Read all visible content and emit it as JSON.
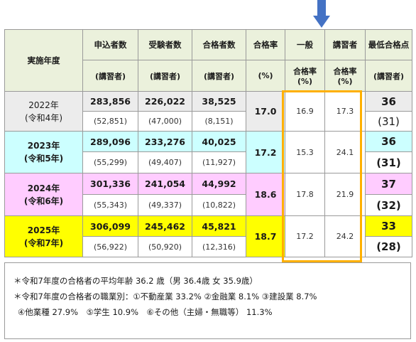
{
  "headers": {
    "year": "実施年度",
    "applicants": "申込者数",
    "examinees": "受験者数",
    "passers": "合格者数",
    "rate": "合格率",
    "general": "一般",
    "course": "講習者",
    "min_score": "最低合格点",
    "course_paren": "(講習者)",
    "pct_unit": "(%)",
    "rate_pct_general": "合格率",
    "rate_pct_general_unit": "(%)",
    "rate_pct_course": "合格率",
    "rate_pct_course_unit": "(%)"
  },
  "rows": [
    {
      "year": "2022年",
      "era": "(令和4年)",
      "applicants": "283,856",
      "applicants_course": "(52,851)",
      "examinees": "226,022",
      "examinees_course": "(47,000)",
      "passers": "38,525",
      "passers_course": "(8,151)",
      "rate": "17.0",
      "general": "16.9",
      "course": "17.3",
      "min": "36",
      "min_course": "(31)"
    },
    {
      "year": "2023年",
      "era": "(令和5年)",
      "applicants": "289,096",
      "applicants_course": "(55,299)",
      "examinees": "233,276",
      "examinees_course": "(49,407)",
      "passers": "40,025",
      "passers_course": "(11,927)",
      "rate": "17.2",
      "general": "15.3",
      "course": "24.1",
      "min": "36",
      "min_course": "(31)"
    },
    {
      "year": "2024年",
      "era": "(令和6年)",
      "applicants": "301,336",
      "applicants_course": "(55,343)",
      "examinees": "241,054",
      "examinees_course": "(49,337)",
      "passers": "44,992",
      "passers_course": "(10,822)",
      "rate": "18.6",
      "general": "17.8",
      "course": "21.9",
      "min": "37",
      "min_course": "(32)"
    },
    {
      "year": "2025年",
      "era": "(令和7年)",
      "applicants": "306,099",
      "applicants_course": "(56,922)",
      "examinees": "245,462",
      "examinees_course": "(50,920)",
      "passers": "45,821",
      "passers_course": "(12,316)",
      "rate": "18.7",
      "general": "17.2",
      "course": "24.2",
      "min": "33",
      "min_course": "(28)"
    }
  ],
  "notes": [
    "＊令和7年度の合格者の平均年齢 36.2 歳（男 36.4歳 女 35.9歳）",
    "＊令和7年度の合格者の職業別：①不動産業 33.2% ②金融業 8.1% ③建設業 8.7%",
    "④他業種 27.9%　⑤学生 10.9%　⑥その他（主婦・無職等） 11.3%"
  ],
  "colors": {
    "header_bg": "#ebf1dc",
    "row_2022": "#ececec",
    "row_2023": "#ccffff",
    "row_2024": "#ffccff",
    "row_2025": "#ffff00",
    "highlight_box": "#ffb000",
    "arrow": "#4472c4"
  },
  "icons": {
    "arrow": "down-arrow-icon"
  }
}
